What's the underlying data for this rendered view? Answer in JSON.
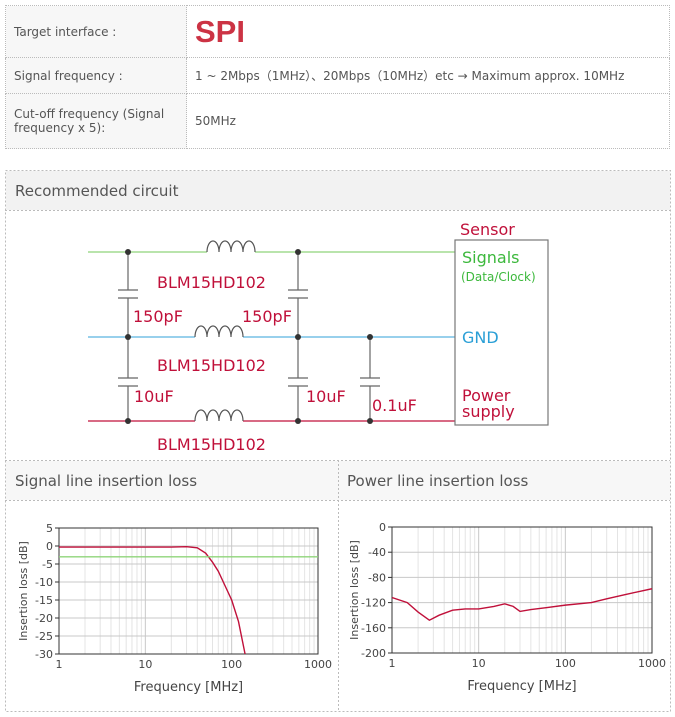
{
  "table": {
    "rows": [
      [
        "Target interface :",
        "SPI"
      ],
      [
        "Signal frequency :",
        "1 ~ 2Mbps（1MHz）、20Mbps（10MHz）etc → Maximum approx. 10MHz"
      ],
      [
        "Cut-off frequency (Signal frequency x 5):",
        "50MHz"
      ]
    ]
  },
  "circuit": {
    "title": "Recommended circuit",
    "sensor": "Sensor",
    "signals": "Signals",
    "signals_note": "(Data/Clock)",
    "gnd": "GND",
    "power": [
      "Power",
      "supply"
    ],
    "inductors": [
      "BLM15HD102",
      "BLM15HD102",
      "BLM15HD102"
    ],
    "capacitors": [
      "150pF",
      "150pF",
      "10uF",
      "10uF",
      "0.1uF"
    ]
  },
  "chart_data": [
    {
      "type": "line",
      "title": "Signal line insertion loss",
      "xlabel": "Frequency [MHz]",
      "ylabel": "Insertion loss [dB]",
      "xscale": "log",
      "grid": true,
      "xlim": [
        1,
        1000
      ],
      "xticks": [
        1,
        10,
        100,
        1000
      ],
      "ylim": [
        -30,
        5
      ],
      "yticks": [
        5,
        0,
        -5,
        -10,
        -15,
        -20,
        -25,
        -30
      ],
      "series": [
        {
          "color": "#c0103a",
          "x": [
            1,
            2,
            5,
            10,
            20,
            30,
            40,
            50,
            60,
            70,
            80,
            100,
            120,
            143
          ],
          "values": [
            -0.3,
            -0.3,
            -0.3,
            -0.3,
            -0.3,
            -0.2,
            -0.5,
            -2,
            -4.5,
            -7,
            -10,
            -15,
            -21,
            -30
          ]
        },
        {
          "color": "#8fd47a",
          "x": [
            1,
            1000
          ],
          "values": [
            -3,
            -3
          ]
        }
      ]
    },
    {
      "type": "line",
      "title": "Power line insertion loss",
      "xlabel": "Frequency [MHz]",
      "ylabel": "Insertion loss [dB]",
      "xscale": "log",
      "grid": true,
      "xlim": [
        1,
        1000
      ],
      "xticks": [
        1,
        10,
        100,
        1000
      ],
      "ylim": [
        -200,
        0
      ],
      "yticks": [
        0,
        -40,
        -80,
        -120,
        -160,
        -200
      ],
      "series": [
        {
          "color": "#c0103a",
          "x": [
            1,
            1.5,
            2,
            2.7,
            3.5,
            5,
            7,
            10,
            15,
            20,
            25,
            30,
            40,
            60,
            100,
            200,
            300,
            500,
            1000
          ],
          "values": [
            -112,
            -120,
            -135,
            -148,
            -140,
            -132,
            -130,
            -130,
            -126,
            -122,
            -126,
            -134,
            -131,
            -128,
            -124,
            -120,
            -114,
            -107,
            -98
          ]
        }
      ]
    }
  ]
}
